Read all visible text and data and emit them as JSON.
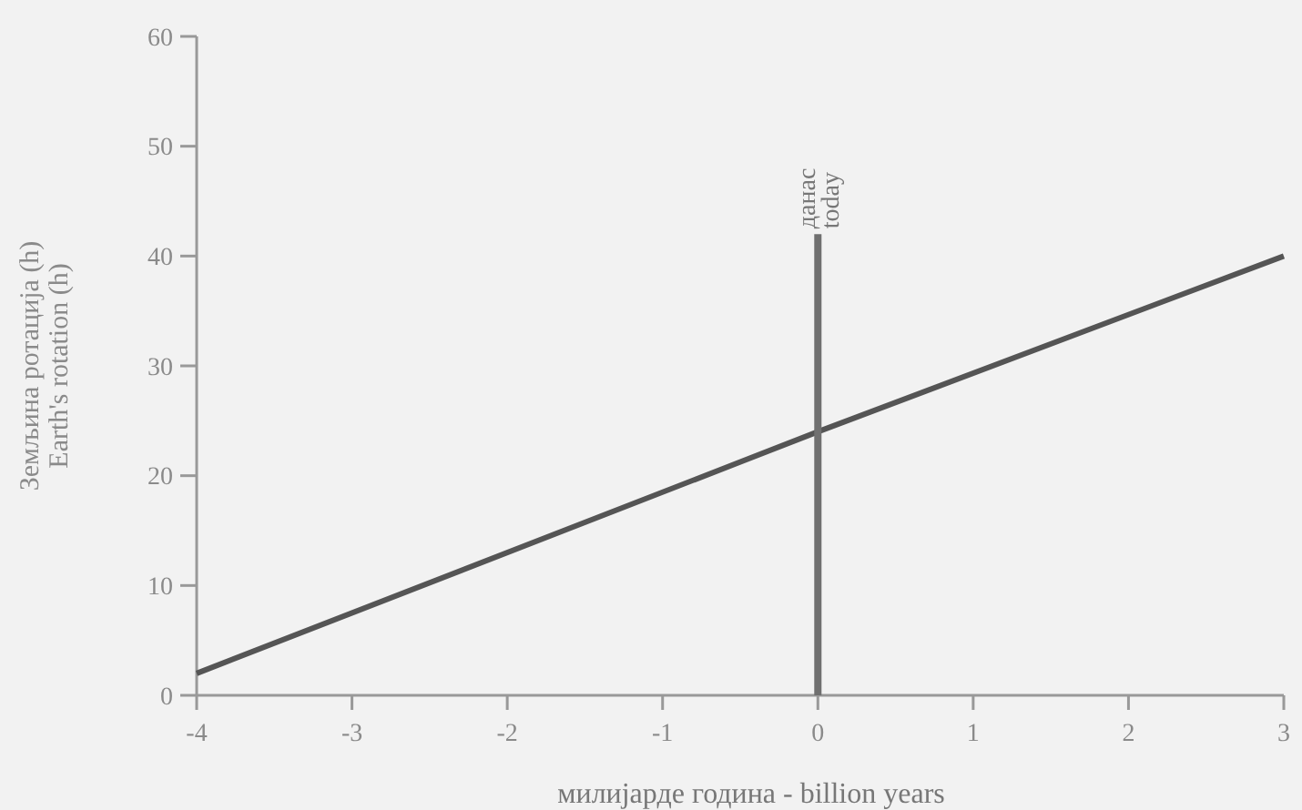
{
  "chart_data": {
    "type": "line",
    "xlabel": "милијарде година - billion years",
    "ylabel": "Земљина ротација (h)\nEarth's rotation (h)",
    "xlim": [
      -4,
      3
    ],
    "xticks": [
      -4,
      -3,
      -2,
      -1,
      0,
      1,
      2,
      3
    ],
    "ylim": [
      0,
      60
    ],
    "yticks": [
      0,
      10,
      20,
      30,
      40,
      50,
      60
    ],
    "series": [
      {
        "x": [
          -4,
          0,
          3
        ],
        "values": [
          2,
          24,
          40
        ],
        "color": "#555555"
      }
    ],
    "ref_lines": [
      {
        "axis": "x",
        "value": 0,
        "label": "данас\ntoday",
        "color": "#707070"
      }
    ],
    "marker": "none",
    "line_style": "solid"
  }
}
